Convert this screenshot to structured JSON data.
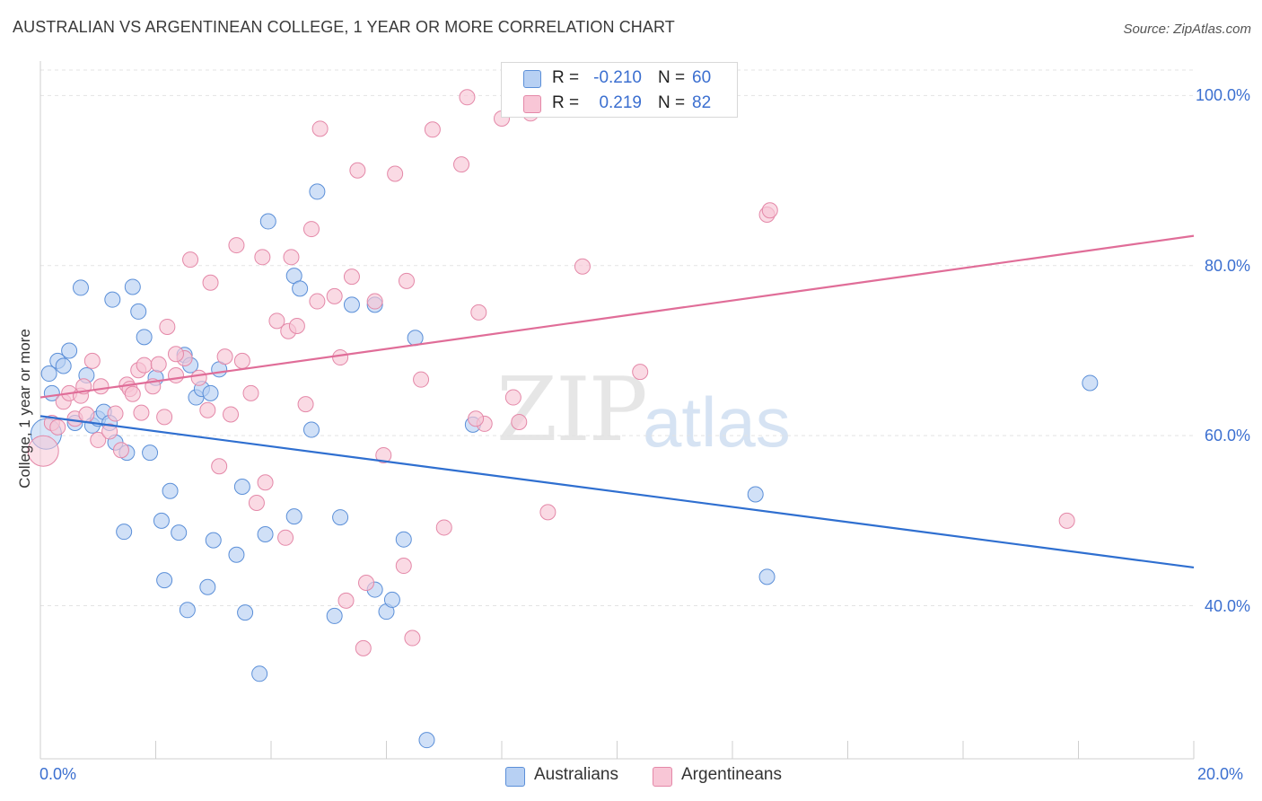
{
  "header": {
    "title": "AUSTRALIAN VS ARGENTINEAN COLLEGE, 1 YEAR OR MORE CORRELATION CHART",
    "source": "Source: ZipAtlas.com"
  },
  "watermark": {
    "zip": "ZIP",
    "atlas": "atlas"
  },
  "legend": {
    "rows": [
      {
        "r_label": "R =",
        "r_value": "-0.210",
        "n_label": "N =",
        "n_value": "60",
        "color": "#a8c8f0"
      },
      {
        "r_label": "R =",
        "r_value": "0.219",
        "n_label": "N =",
        "n_value": "82",
        "color": "#f6b8cc"
      }
    ]
  },
  "bottom_legend": {
    "australians": "Australians",
    "argentineans": "Argentineans"
  },
  "colors": {
    "australians_fill": "#b7d0f3",
    "australians_stroke": "#5b8fd8",
    "australians_line": "#2f6fd0",
    "argentineans_fill": "#f8c6d6",
    "argentineans_stroke": "#e488a8",
    "argentineans_line": "#e06d98",
    "grid": "#e3e3e3",
    "axis_text": "#3b6fd0"
  },
  "chart_data": {
    "type": "scatter",
    "title": "AUSTRALIAN VS ARGENTINEAN COLLEGE, 1 YEAR OR MORE CORRELATION CHART",
    "xlabel": "",
    "ylabel": "College, 1 year or more",
    "xlim": [
      0,
      20
    ],
    "ylim": [
      22,
      103
    ],
    "x_tick_labels": [
      "0.0%",
      "20.0%"
    ],
    "y_tick_values": [
      40,
      60,
      80,
      100
    ],
    "y_tick_labels": [
      "40.0%",
      "60.0%",
      "80.0%",
      "100.0%"
    ],
    "grid": true,
    "legend_position": "top-center",
    "series": [
      {
        "name": "Australians",
        "stats": {
          "R": -0.21,
          "N": 60
        },
        "trend": {
          "x": [
            0,
            20
          ],
          "y": [
            62.3,
            44.5
          ]
        },
        "points": [
          [
            0.1,
            60.2
          ],
          [
            0.15,
            67.3
          ],
          [
            0.2,
            65.0
          ],
          [
            0.3,
            68.8
          ],
          [
            0.4,
            68.2
          ],
          [
            0.5,
            70.0
          ],
          [
            0.6,
            61.5
          ],
          [
            0.7,
            77.4
          ],
          [
            0.8,
            67.1
          ],
          [
            0.9,
            61.2
          ],
          [
            1.0,
            62.0
          ],
          [
            1.1,
            62.8
          ],
          [
            1.2,
            61.5
          ],
          [
            1.25,
            76.0
          ],
          [
            1.3,
            59.2
          ],
          [
            1.45,
            48.7
          ],
          [
            1.5,
            58.0
          ],
          [
            1.6,
            77.5
          ],
          [
            1.7,
            74.6
          ],
          [
            1.8,
            71.6
          ],
          [
            1.9,
            58.0
          ],
          [
            2.0,
            66.8
          ],
          [
            2.1,
            50.0
          ],
          [
            2.15,
            43.0
          ],
          [
            2.25,
            53.5
          ],
          [
            2.4,
            48.6
          ],
          [
            2.5,
            69.5
          ],
          [
            2.55,
            39.5
          ],
          [
            2.6,
            68.3
          ],
          [
            2.7,
            64.5
          ],
          [
            2.8,
            65.5
          ],
          [
            2.9,
            42.2
          ],
          [
            2.95,
            65.0
          ],
          [
            3.0,
            47.7
          ],
          [
            3.1,
            67.8
          ],
          [
            3.4,
            46.0
          ],
          [
            3.5,
            54.0
          ],
          [
            3.55,
            39.2
          ],
          [
            3.8,
            32.0
          ],
          [
            3.9,
            48.4
          ],
          [
            3.95,
            85.2
          ],
          [
            4.4,
            50.5
          ],
          [
            4.4,
            78.8
          ],
          [
            4.5,
            77.3
          ],
          [
            4.7,
            60.7
          ],
          [
            4.8,
            88.7
          ],
          [
            5.1,
            38.8
          ],
          [
            5.2,
            50.4
          ],
          [
            5.4,
            75.4
          ],
          [
            5.8,
            41.9
          ],
          [
            5.8,
            75.4
          ],
          [
            6.0,
            39.3
          ],
          [
            6.1,
            40.7
          ],
          [
            6.3,
            47.8
          ],
          [
            6.5,
            71.5
          ],
          [
            6.7,
            24.2
          ],
          [
            7.5,
            61.3
          ],
          [
            12.4,
            53.1
          ],
          [
            12.6,
            43.4
          ],
          [
            18.2,
            66.2
          ]
        ],
        "point_sizes": {
          "large": [
            [
              0.1,
              60.2
            ]
          ]
        }
      },
      {
        "name": "Argentineans",
        "stats": {
          "R": 0.219,
          "N": 82
        },
        "trend": {
          "x": [
            0,
            20
          ],
          "y": [
            64.5,
            83.5
          ]
        },
        "points": [
          [
            0.05,
            58.2
          ],
          [
            0.2,
            61.5
          ],
          [
            0.3,
            61.0
          ],
          [
            0.4,
            64.0
          ],
          [
            0.5,
            65.0
          ],
          [
            0.6,
            62.0
          ],
          [
            0.7,
            64.7
          ],
          [
            0.75,
            65.8
          ],
          [
            0.8,
            62.5
          ],
          [
            0.9,
            68.8
          ],
          [
            1.0,
            59.5
          ],
          [
            1.05,
            65.8
          ],
          [
            1.2,
            60.5
          ],
          [
            1.3,
            62.6
          ],
          [
            1.4,
            58.3
          ],
          [
            1.5,
            66.0
          ],
          [
            1.55,
            65.5
          ],
          [
            1.7,
            67.7
          ],
          [
            1.75,
            62.7
          ],
          [
            1.8,
            68.3
          ],
          [
            1.95,
            65.8
          ],
          [
            2.05,
            68.4
          ],
          [
            2.15,
            62.2
          ],
          [
            2.2,
            72.8
          ],
          [
            2.35,
            67.1
          ],
          [
            2.5,
            69.1
          ],
          [
            2.6,
            80.7
          ],
          [
            2.75,
            66.8
          ],
          [
            2.9,
            63.0
          ],
          [
            2.95,
            78.0
          ],
          [
            3.1,
            56.4
          ],
          [
            3.2,
            69.3
          ],
          [
            3.3,
            62.5
          ],
          [
            3.4,
            82.4
          ],
          [
            3.5,
            68.8
          ],
          [
            3.65,
            65.0
          ],
          [
            3.75,
            52.1
          ],
          [
            3.85,
            81.0
          ],
          [
            3.9,
            54.5
          ],
          [
            4.1,
            73.5
          ],
          [
            4.25,
            48.0
          ],
          [
            4.3,
            72.3
          ],
          [
            4.35,
            81.0
          ],
          [
            4.45,
            72.9
          ],
          [
            4.6,
            63.7
          ],
          [
            4.7,
            84.3
          ],
          [
            4.8,
            75.8
          ],
          [
            4.85,
            96.1
          ],
          [
            5.1,
            76.4
          ],
          [
            5.2,
            69.2
          ],
          [
            5.3,
            40.6
          ],
          [
            5.4,
            78.7
          ],
          [
            5.5,
            91.2
          ],
          [
            5.6,
            35.0
          ],
          [
            5.65,
            42.7
          ],
          [
            5.8,
            75.8
          ],
          [
            5.95,
            57.7
          ],
          [
            6.15,
            90.8
          ],
          [
            6.3,
            44.7
          ],
          [
            6.35,
            78.2
          ],
          [
            6.45,
            36.2
          ],
          [
            6.6,
            66.6
          ],
          [
            6.8,
            96.0
          ],
          [
            7.0,
            49.2
          ],
          [
            7.3,
            91.9
          ],
          [
            7.4,
            99.8
          ],
          [
            7.6,
            74.5
          ],
          [
            7.7,
            61.4
          ],
          [
            8.0,
            97.3
          ],
          [
            8.2,
            64.5
          ],
          [
            8.3,
            61.6
          ],
          [
            8.5,
            97.9
          ],
          [
            8.8,
            51.0
          ],
          [
            9.4,
            79.9
          ],
          [
            9.8,
            99.7
          ],
          [
            10.4,
            67.5
          ],
          [
            12.6,
            86.0
          ],
          [
            12.65,
            86.5
          ],
          [
            17.8,
            50.0
          ],
          [
            1.6,
            64.9
          ],
          [
            2.35,
            69.6
          ],
          [
            7.55,
            62.0
          ]
        ],
        "point_sizes": {
          "large": [
            [
              0.05,
              58.2
            ]
          ]
        }
      }
    ]
  }
}
